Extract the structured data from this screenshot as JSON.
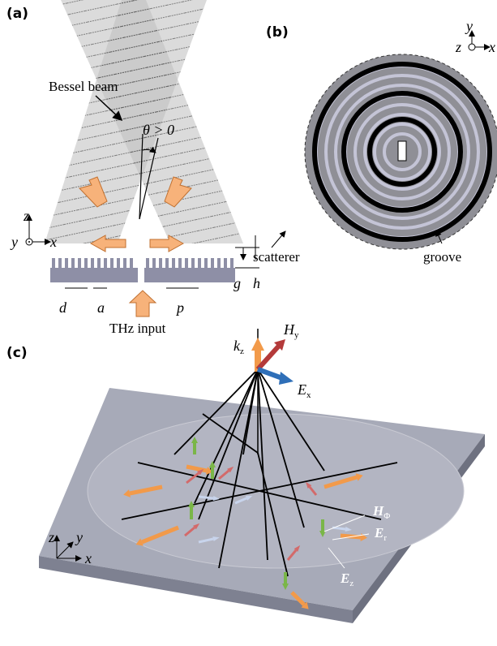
{
  "panel_a": {
    "label": "(a)",
    "beam_label": "Bessel beam",
    "angle_label": "θ > 0",
    "axes": {
      "z": "z",
      "y": "y",
      "x": "x"
    },
    "dims": {
      "d": "d",
      "a": "a",
      "p": "p",
      "g": "g",
      "h": "h"
    },
    "input_label": "THz input"
  },
  "panel_b": {
    "label": "(b)",
    "axes": {
      "y": "y",
      "z": "z",
      "x": "x"
    },
    "scatterer_label": "scatterer",
    "groove_label": "groove"
  },
  "panel_c": {
    "label": "(c)",
    "fields": {
      "kz": {
        "symbol": "k",
        "subscript": "z"
      },
      "Hy": {
        "symbol": "H",
        "subscript": "y"
      },
      "Ex": {
        "symbol": "E",
        "subscript": "x"
      },
      "Hphi": {
        "symbol": "H",
        "subscript": "Φ"
      },
      "Er": {
        "symbol": "E",
        "subscript": "r"
      },
      "Ez": {
        "symbol": "E",
        "subscript": "z"
      }
    },
    "axes": {
      "z": "z",
      "y": "y",
      "x": "x"
    }
  }
}
